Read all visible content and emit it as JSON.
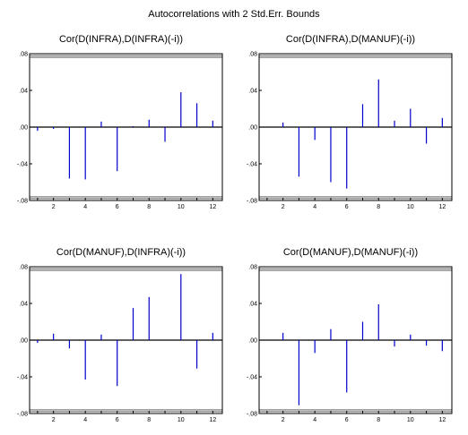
{
  "title": "Autocorrelations with 2 Std.Err. Bounds",
  "colors": {
    "bar": "#0000cc",
    "frame": "#000000",
    "bound": "#000000"
  },
  "chart_data": [
    {
      "type": "bar",
      "title": "Cor(D(INFRA),D(INFRA)(-i))",
      "x": [
        1,
        2,
        3,
        4,
        5,
        6,
        7,
        8,
        9,
        10,
        11,
        12
      ],
      "values": [
        -0.004,
        -0.002,
        -0.056,
        -0.057,
        0.006,
        -0.048,
        0.001,
        0.008,
        -0.016,
        0.038,
        0.026,
        0.007
      ],
      "ylim": [
        -0.08,
        0.08
      ],
      "yticks": [
        0.08,
        0.04,
        0.0,
        -0.04,
        -0.08
      ],
      "ytick_labels": [
        ".08",
        ".04",
        ".00",
        "-.04",
        "-.08"
      ],
      "xticks": [
        2,
        4,
        6,
        8,
        10,
        12
      ],
      "xtick_labels": [
        "2",
        "4",
        "6",
        "8",
        "10",
        "12"
      ],
      "bounds": [
        0.078,
        -0.078
      ]
    },
    {
      "type": "bar",
      "title": "Cor(D(INFRA),D(MANUF)(-i))",
      "x": [
        1,
        2,
        3,
        4,
        5,
        6,
        7,
        8,
        9,
        10,
        11,
        12
      ],
      "values": [
        0.0,
        0.005,
        -0.054,
        -0.014,
        -0.06,
        -0.067,
        0.025,
        0.052,
        0.007,
        0.02,
        -0.018,
        0.01
      ],
      "ylim": [
        -0.08,
        0.08
      ],
      "yticks": [
        0.08,
        0.04,
        0.0,
        -0.04,
        -0.08
      ],
      "ytick_labels": [
        ".08",
        ".04",
        ".00",
        "-.04",
        "-.08"
      ],
      "xticks": [
        2,
        4,
        6,
        8,
        10,
        12
      ],
      "xtick_labels": [
        "2",
        "4",
        "6",
        "8",
        "10",
        "12"
      ],
      "bounds": [
        0.078,
        -0.078
      ]
    },
    {
      "type": "bar",
      "title": "Cor(D(MANUF),D(INFRA)(-i))",
      "x": [
        1,
        2,
        3,
        4,
        5,
        6,
        7,
        8,
        9,
        10,
        11,
        12
      ],
      "values": [
        -0.003,
        0.007,
        -0.009,
        -0.043,
        0.006,
        -0.05,
        0.035,
        0.047,
        0.0,
        0.072,
        -0.031,
        0.008
      ],
      "ylim": [
        -0.08,
        0.08
      ],
      "yticks": [
        0.08,
        0.04,
        0.0,
        -0.04,
        -0.08
      ],
      "ytick_labels": [
        ".08",
        ".04",
        ".00",
        "-.04",
        "-.08"
      ],
      "xticks": [
        2,
        4,
        6,
        8,
        10,
        12
      ],
      "xtick_labels": [
        "2",
        "4",
        "6",
        "8",
        "10",
        "12"
      ],
      "bounds": [
        0.078,
        -0.078
      ]
    },
    {
      "type": "bar",
      "title": "Cor(D(MANUF),D(MANUF)(-i))",
      "x": [
        1,
        2,
        3,
        4,
        5,
        6,
        7,
        8,
        9,
        10,
        11,
        12
      ],
      "values": [
        0.0,
        0.008,
        -0.071,
        -0.014,
        0.012,
        -0.057,
        0.02,
        0.039,
        -0.007,
        0.006,
        -0.006,
        -0.012
      ],
      "ylim": [
        -0.08,
        0.08
      ],
      "yticks": [
        0.08,
        0.04,
        0.0,
        -0.04,
        -0.08
      ],
      "ytick_labels": [
        ".08",
        ".04",
        ".00",
        "-.04",
        "-.08"
      ],
      "xticks": [
        2,
        4,
        6,
        8,
        10,
        12
      ],
      "xtick_labels": [
        "2",
        "4",
        "6",
        "8",
        "10",
        "12"
      ],
      "bounds": [
        0.078,
        -0.078
      ]
    }
  ]
}
